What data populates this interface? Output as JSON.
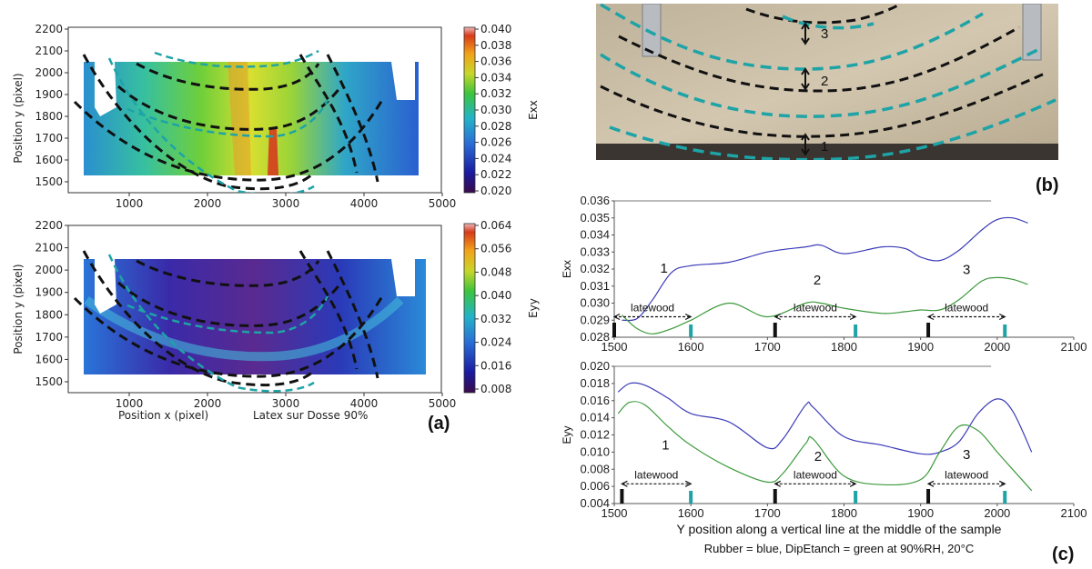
{
  "colors": {
    "rubber": "#3b3bb8",
    "dipetanch": "#3c9a3c",
    "dashed_black": "#111111",
    "dashed_teal": "#1ea3a6",
    "photo_wood": "#c9bca4"
  },
  "panel_a": {
    "panel_label": "(a)",
    "x_label": "Position x (pixel)",
    "y_label": "Position y (pixel)",
    "subtitle": "Latex sur Dosse 90%",
    "x_ticks": [
      "1000",
      "2000",
      "3000",
      "4000",
      "5000"
    ],
    "y_ticks": [
      "2200",
      "2100",
      "2000",
      "1900",
      "1800",
      "1700",
      "1600",
      "1500"
    ],
    "top_map": {
      "colorbar_label": "Exx",
      "colorbar_ticks": [
        "0.040",
        "0.038",
        "0.036",
        "0.034",
        "0.032",
        "0.030",
        "0.028",
        "0.026",
        "0.024",
        "0.022",
        "0.020"
      ]
    },
    "bottom_map": {
      "colorbar_label": "Eyy",
      "colorbar_ticks": [
        "0.064",
        "0.056",
        "0.048",
        "0.040",
        "0.032",
        "0.024",
        "0.016",
        "0.008"
      ]
    }
  },
  "panel_b": {
    "panel_label": "(b)",
    "growth_ring_labels": [
      "3",
      "2",
      "1"
    ]
  },
  "panel_c": {
    "panel_label": "(c)",
    "caption_line1": "Y position along a vertical line at the middle of the sample",
    "caption_line2": "Rubber = blue, DipEtanch = green  at 90%RH, 20°C",
    "latewood_label": "latewood"
  },
  "chart_data": [
    {
      "type": "line",
      "panel": "(c) top",
      "ylabel": "Exx",
      "xlim": [
        1500,
        2100
      ],
      "ylim": [
        0.028,
        0.036
      ],
      "x_ticks": [
        "1500",
        "1600",
        "1700",
        "1800",
        "1900",
        "2000",
        "2100"
      ],
      "y_ticks": [
        "0.036",
        "0.035",
        "0.034",
        "0.033",
        "0.032",
        "0.031",
        "0.030",
        "0.029",
        "0.028"
      ],
      "x": [
        1510,
        1530,
        1550,
        1575,
        1600,
        1650,
        1700,
        1750,
        1770,
        1800,
        1850,
        1880,
        1900,
        1925,
        1950,
        1980,
        2000,
        2020,
        2040
      ],
      "series": [
        {
          "color": "blue",
          "values": [
            0.029,
            0.0291,
            0.0302,
            0.0318,
            0.0322,
            0.0324,
            0.033,
            0.0333,
            0.0334,
            0.0329,
            0.0333,
            0.0332,
            0.0327,
            0.0325,
            0.0331,
            0.0343,
            0.0349,
            0.035,
            0.0347
          ]
        },
        {
          "color": "green",
          "values": [
            0.0293,
            0.0285,
            0.0282,
            0.0285,
            0.029,
            0.03,
            0.0292,
            0.03,
            0.03,
            0.0297,
            0.0294,
            0.0295,
            0.0296,
            0.0296,
            0.0302,
            0.0313,
            0.0315,
            0.0314,
            0.0311
          ]
        }
      ],
      "annotations": [
        {
          "text": "1",
          "x": 1565,
          "y": 0.0318
        },
        {
          "text": "2",
          "x": 1765,
          "y": 0.0311
        },
        {
          "text": "3",
          "x": 1960,
          "y": 0.0317
        },
        {
          "text": "latewood",
          "from": 1500,
          "to": 1600,
          "y": 0.0292
        },
        {
          "text": "latewood",
          "from": 1710,
          "to": 1815,
          "y": 0.0292
        },
        {
          "text": "latewood",
          "from": 1910,
          "to": 2010,
          "y": 0.0292
        }
      ]
    },
    {
      "type": "line",
      "panel": "(c) bottom",
      "ylabel": "Eyy",
      "xlim": [
        1500,
        2100
      ],
      "ylim": [
        0.004,
        0.02
      ],
      "x_ticks": [
        "1500",
        "1600",
        "1700",
        "1800",
        "1900",
        "2000",
        "2100"
      ],
      "y_ticks": [
        "0.020",
        "0.018",
        "0.016",
        "0.014",
        "0.012",
        "0.010",
        "0.008",
        "0.006",
        "0.004"
      ],
      "x": [
        1505,
        1520,
        1540,
        1570,
        1600,
        1650,
        1700,
        1720,
        1750,
        1760,
        1800,
        1850,
        1900,
        1925,
        1950,
        1975,
        2000,
        2020,
        2045
      ],
      "series": [
        {
          "color": "blue",
          "values": [
            0.017,
            0.018,
            0.0178,
            0.0163,
            0.0145,
            0.0135,
            0.0105,
            0.0115,
            0.0155,
            0.0152,
            0.0118,
            0.0108,
            0.0098,
            0.01,
            0.0112,
            0.0145,
            0.0162,
            0.0148,
            0.01
          ]
        },
        {
          "color": "green",
          "values": [
            0.0145,
            0.0158,
            0.0155,
            0.013,
            0.0108,
            0.0082,
            0.0065,
            0.0075,
            0.011,
            0.0115,
            0.0072,
            0.0062,
            0.0068,
            0.01,
            0.013,
            0.0125,
            0.01,
            0.008,
            0.0055
          ]
        }
      ],
      "annotations": [
        {
          "text": "1",
          "x": 1567,
          "y": 0.0103
        },
        {
          "text": "2",
          "x": 1766,
          "y": 0.009
        },
        {
          "text": "3",
          "x": 1960,
          "y": 0.0092
        },
        {
          "text": "latewood",
          "from": 1510,
          "to": 1600,
          "y": 0.0063
        },
        {
          "text": "latewood",
          "from": 1710,
          "to": 1815,
          "y": 0.0063
        },
        {
          "text": "latewood",
          "from": 1910,
          "to": 2010,
          "y": 0.0063
        }
      ]
    }
  ]
}
